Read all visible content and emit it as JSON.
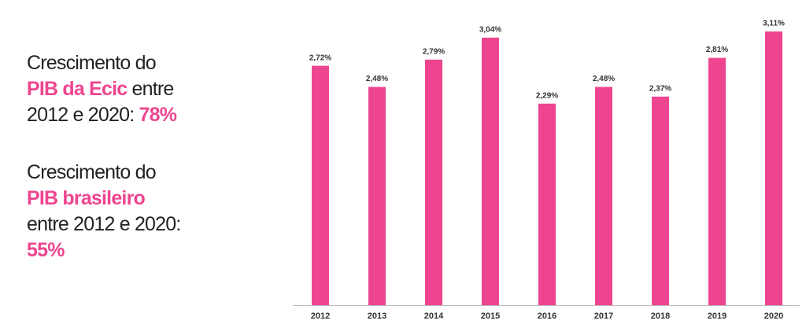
{
  "chart_data": {
    "type": "bar",
    "categories": [
      "2012",
      "2013",
      "2014",
      "2015",
      "2016",
      "2017",
      "2018",
      "2019",
      "2020"
    ],
    "values": [
      2.72,
      2.48,
      2.79,
      3.04,
      2.29,
      2.48,
      2.37,
      2.81,
      3.11
    ],
    "value_labels": [
      "2,72%",
      "2,48%",
      "2,79%",
      "3,04%",
      "2,29%",
      "2,48%",
      "2,37%",
      "2,81%",
      "3,11%"
    ],
    "color": "#ee4590"
  },
  "annotations": [
    {
      "lead": "Crescimento do",
      "subject": "PIB da Ecic",
      "period_a": "entre",
      "period_b": "2012 e 2020:",
      "value": "78%"
    },
    {
      "lead": "Crescimento do",
      "subject": "PIB brasileiro",
      "period_a": "entre 2012 e 2020:",
      "value": "55%"
    }
  ]
}
